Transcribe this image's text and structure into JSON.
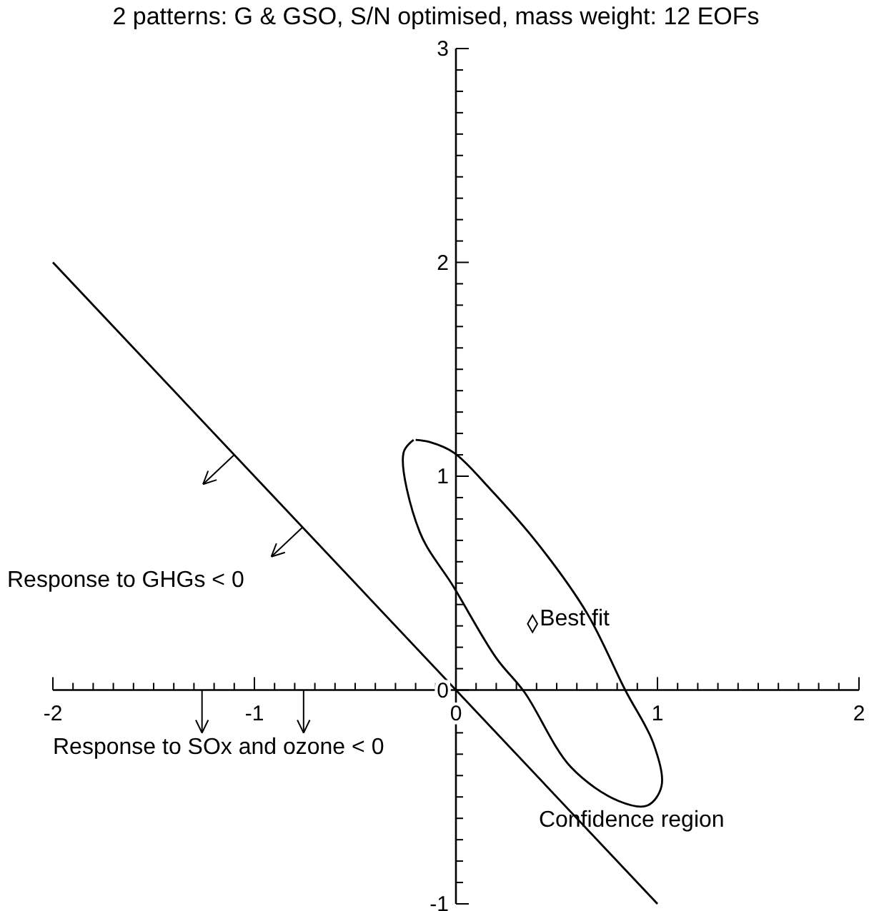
{
  "chart_data": {
    "type": "line",
    "title": "2 patterns: G & GSO, S/N optimised, mass weight: 12 EOFs",
    "xlim": [
      -2,
      2
    ],
    "ylim": [
      -1,
      3
    ],
    "xticks": [
      -2,
      {
        "value": -1.9,
        "label": null
      },
      {
        "value": -1.8,
        "label": null
      },
      {
        "value": -1.7,
        "label": null
      },
      {
        "value": -1.6,
        "label": null
      },
      {
        "value": -1.5,
        "label": null
      },
      {
        "value": -1.4,
        "label": null
      },
      {
        "value": -1.3,
        "label": null
      },
      {
        "value": -1.2,
        "label": null
      },
      {
        "value": -1.1,
        "label": null
      },
      -1,
      {
        "value": -0.9,
        "label": null
      },
      {
        "value": -0.8,
        "label": null
      },
      {
        "value": -0.7,
        "label": null
      },
      {
        "value": -0.6,
        "label": null
      },
      {
        "value": -0.5,
        "label": null
      },
      {
        "value": -0.4,
        "label": null
      },
      {
        "value": -0.3,
        "label": null
      },
      {
        "value": -0.2,
        "label": null
      },
      {
        "value": -0.1,
        "label": null
      },
      0,
      {
        "value": 0.1,
        "label": null
      },
      {
        "value": 0.2,
        "label": null
      },
      {
        "value": 0.3,
        "label": null
      },
      {
        "value": 0.4,
        "label": null
      },
      {
        "value": 0.5,
        "label": null
      },
      {
        "value": 0.6,
        "label": null
      },
      {
        "value": 0.7,
        "label": null
      },
      {
        "value": 0.8,
        "label": null
      },
      {
        "value": 0.9,
        "label": null
      },
      1,
      {
        "value": 1.1,
        "label": null
      },
      {
        "value": 1.2,
        "label": null
      },
      {
        "value": 1.3,
        "label": null
      },
      {
        "value": 1.4,
        "label": null
      },
      {
        "value": 1.5,
        "label": null
      },
      {
        "value": 1.6,
        "label": null
      },
      {
        "value": 1.7,
        "label": null
      },
      {
        "value": 1.8,
        "label": null
      },
      {
        "value": 1.9,
        "label": null
      },
      2
    ],
    "yticks": [
      -1,
      {
        "value": -0.9,
        "label": null
      },
      {
        "value": -0.8,
        "label": null
      },
      {
        "value": -0.7,
        "label": null
      },
      {
        "value": -0.6,
        "label": null
      },
      {
        "value": -0.5,
        "label": null
      },
      {
        "value": -0.4,
        "label": null
      },
      {
        "value": -0.3,
        "label": null
      },
      {
        "value": -0.2,
        "label": null
      },
      {
        "value": -0.1,
        "label": null
      },
      0,
      {
        "value": 0.1,
        "label": null
      },
      {
        "value": 0.2,
        "label": null
      },
      {
        "value": 0.3,
        "label": null
      },
      {
        "value": 0.4,
        "label": null
      },
      {
        "value": 0.5,
        "label": null
      },
      {
        "value": 0.6,
        "label": null
      },
      {
        "value": 0.7,
        "label": null
      },
      {
        "value": 0.8,
        "label": null
      },
      {
        "value": 0.9,
        "label": null
      },
      1,
      {
        "value": 1.1,
        "label": null
      },
      {
        "value": 1.2,
        "label": null
      },
      {
        "value": 1.3,
        "label": null
      },
      {
        "value": 1.4,
        "label": null
      },
      {
        "value": 1.5,
        "label": null
      },
      {
        "value": 1.6,
        "label": null
      },
      {
        "value": 1.7,
        "label": null
      },
      {
        "value": 1.8,
        "label": null
      },
      {
        "value": 1.9,
        "label": null
      },
      2,
      {
        "value": 2.1,
        "label": null
      },
      {
        "value": 2.2,
        "label": null
      },
      {
        "value": 2.3,
        "label": null
      },
      {
        "value": 2.4,
        "label": null
      },
      {
        "value": 2.5,
        "label": null
      },
      {
        "value": 2.6,
        "label": null
      },
      {
        "value": 2.7,
        "label": null
      },
      {
        "value": 2.8,
        "label": null
      },
      {
        "value": 2.9,
        "label": null
      },
      3
    ],
    "grid": false,
    "legend": false,
    "marker": "none",
    "line_style": "solid",
    "series": [
      {
        "color": "#000000",
        "x": [
          -2,
          1
        ],
        "values": [
          2,
          -1
        ]
      },
      {
        "name": "Confidence region",
        "type": "line",
        "color": "#000000",
        "x": [
          -0.21,
          -0.26,
          -0.18,
          -0.01,
          0.2,
          0.34,
          0.57,
          0.81,
          0.95,
          1.02,
          0.98,
          0.84,
          0.65,
          0.41,
          0.17,
          -0.01,
          -0.13,
          -0.2
        ],
        "values": [
          1.17,
          1.11,
          0.74,
          0.48,
          0.15,
          -0.01,
          -0.36,
          -0.52,
          -0.54,
          -0.45,
          -0.25,
          0,
          0.36,
          0.68,
          0.94,
          1.11,
          1.16,
          1.17
        ]
      },
      {
        "name": "Best fit",
        "type": "scatter",
        "marker": "diamond",
        "color": "#000000",
        "x": [
          0.38
        ],
        "values": [
          0.31
        ]
      }
    ],
    "annotations": [
      "Response to GHGs < 0",
      "Response to SOx and ozone < 0"
    ]
  }
}
